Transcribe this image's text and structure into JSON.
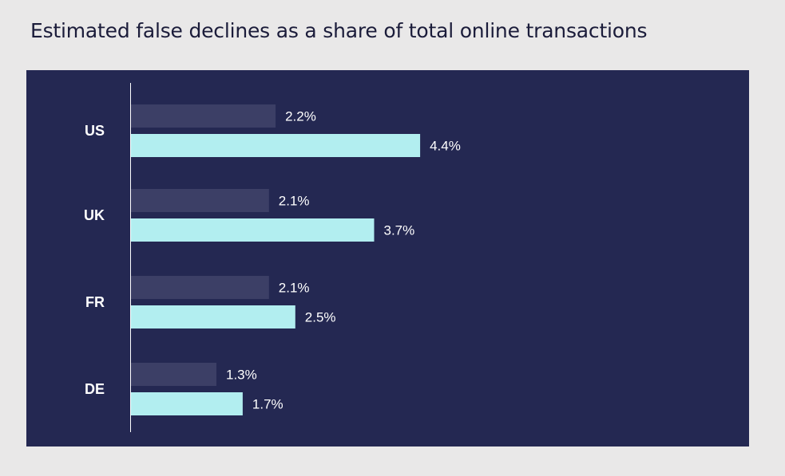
{
  "chart_data": {
    "type": "bar",
    "orientation": "horizontal",
    "title": "Estimated false declines as a share of total online transactions",
    "categories": [
      "US",
      "UK",
      "FR",
      "DE"
    ],
    "series": [
      {
        "values": [
          2.2,
          2.1,
          2.1,
          1.3
        ],
        "labels": [
          "2.2%",
          "2.1%",
          "2.1%",
          "1.3%"
        ],
        "color": "#3c3f66"
      },
      {
        "values": [
          4.4,
          3.7,
          2.5,
          1.7
        ],
        "labels": [
          "4.4%",
          "3.7%",
          "2.5%",
          "1.7%"
        ],
        "color": "#b2eef0"
      }
    ],
    "value_suffix": "%",
    "grid": false,
    "legend": false,
    "xlim": [
      0,
      4.4
    ],
    "colors": {
      "page_background": "#e9e8e8",
      "chart_background": "#242852",
      "axis": "#ffffff",
      "text": "#ffffff",
      "title": "#1b1c3a"
    }
  }
}
